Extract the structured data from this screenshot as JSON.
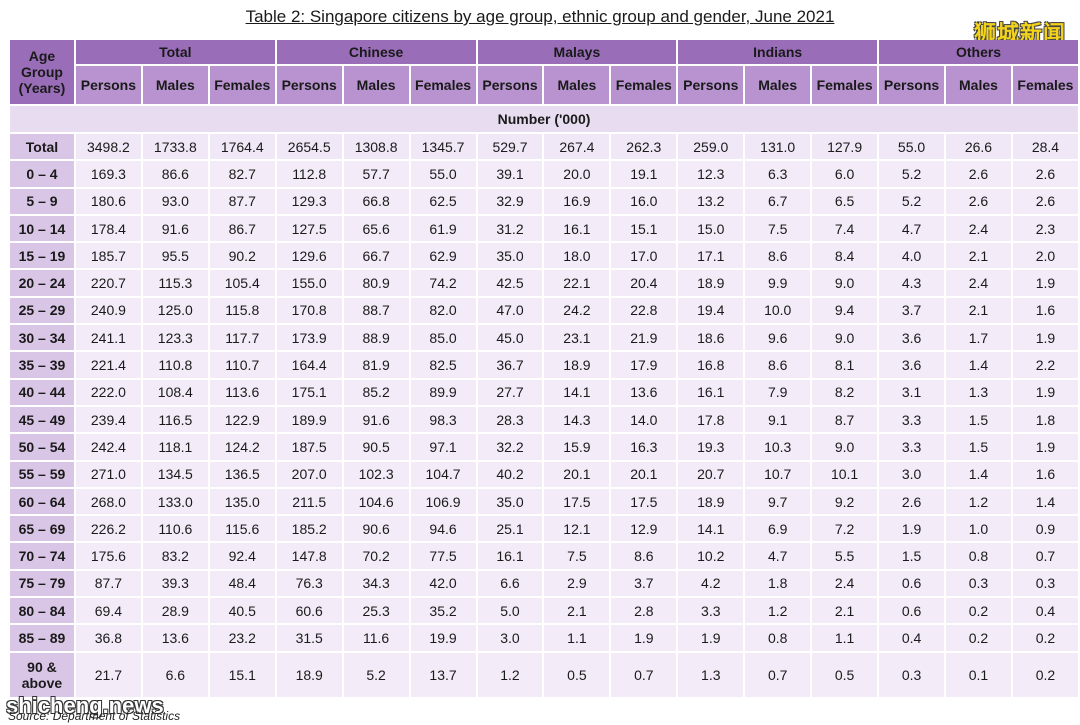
{
  "title": "Table 2: Singapore citizens by age group, ethnic group and gender, June 2021",
  "watermark_top": "狮城新闻",
  "watermark_bottom": "shicheng.news",
  "source": "Source: Department of Statistics",
  "header": {
    "age_group": "Age Group (Years)",
    "groups": [
      "Total",
      "Chinese",
      "Malays",
      "Indians",
      "Others"
    ],
    "sub": [
      "Persons",
      "Males",
      "Females"
    ],
    "unit": "Number ('000)"
  },
  "rows": [
    {
      "age": "Total",
      "values": [
        "3498.2",
        "1733.8",
        "1764.4",
        "2654.5",
        "1308.8",
        "1345.7",
        "529.7",
        "267.4",
        "262.3",
        "259.0",
        "131.0",
        "127.9",
        "55.0",
        "26.6",
        "28.4"
      ]
    },
    {
      "age": "0 – 4",
      "values": [
        "169.3",
        "86.6",
        "82.7",
        "112.8",
        "57.7",
        "55.0",
        "39.1",
        "20.0",
        "19.1",
        "12.3",
        "6.3",
        "6.0",
        "5.2",
        "2.6",
        "2.6"
      ]
    },
    {
      "age": "5 – 9",
      "values": [
        "180.6",
        "93.0",
        "87.7",
        "129.3",
        "66.8",
        "62.5",
        "32.9",
        "16.9",
        "16.0",
        "13.2",
        "6.7",
        "6.5",
        "5.2",
        "2.6",
        "2.6"
      ]
    },
    {
      "age": "10 – 14",
      "values": [
        "178.4",
        "91.6",
        "86.7",
        "127.5",
        "65.6",
        "61.9",
        "31.2",
        "16.1",
        "15.1",
        "15.0",
        "7.5",
        "7.4",
        "4.7",
        "2.4",
        "2.3"
      ]
    },
    {
      "age": "15 – 19",
      "values": [
        "185.7",
        "95.5",
        "90.2",
        "129.6",
        "66.7",
        "62.9",
        "35.0",
        "18.0",
        "17.0",
        "17.1",
        "8.6",
        "8.4",
        "4.0",
        "2.1",
        "2.0"
      ]
    },
    {
      "age": "20 – 24",
      "values": [
        "220.7",
        "115.3",
        "105.4",
        "155.0",
        "80.9",
        "74.2",
        "42.5",
        "22.1",
        "20.4",
        "18.9",
        "9.9",
        "9.0",
        "4.3",
        "2.4",
        "1.9"
      ]
    },
    {
      "age": "25 – 29",
      "values": [
        "240.9",
        "125.0",
        "115.8",
        "170.8",
        "88.7",
        "82.0",
        "47.0",
        "24.2",
        "22.8",
        "19.4",
        "10.0",
        "9.4",
        "3.7",
        "2.1",
        "1.6"
      ]
    },
    {
      "age": "30 – 34",
      "values": [
        "241.1",
        "123.3",
        "117.7",
        "173.9",
        "88.9",
        "85.0",
        "45.0",
        "23.1",
        "21.9",
        "18.6",
        "9.6",
        "9.0",
        "3.6",
        "1.7",
        "1.9"
      ]
    },
    {
      "age": "35 – 39",
      "values": [
        "221.4",
        "110.8",
        "110.7",
        "164.4",
        "81.9",
        "82.5",
        "36.7",
        "18.9",
        "17.9",
        "16.8",
        "8.6",
        "8.1",
        "3.6",
        "1.4",
        "2.2"
      ]
    },
    {
      "age": "40 – 44",
      "values": [
        "222.0",
        "108.4",
        "113.6",
        "175.1",
        "85.2",
        "89.9",
        "27.7",
        "14.1",
        "13.6",
        "16.1",
        "7.9",
        "8.2",
        "3.1",
        "1.3",
        "1.9"
      ]
    },
    {
      "age": "45 – 49",
      "values": [
        "239.4",
        "116.5",
        "122.9",
        "189.9",
        "91.6",
        "98.3",
        "28.3",
        "14.3",
        "14.0",
        "17.8",
        "9.1",
        "8.7",
        "3.3",
        "1.5",
        "1.8"
      ]
    },
    {
      "age": "50 – 54",
      "values": [
        "242.4",
        "118.1",
        "124.2",
        "187.5",
        "90.5",
        "97.1",
        "32.2",
        "15.9",
        "16.3",
        "19.3",
        "10.3",
        "9.0",
        "3.3",
        "1.5",
        "1.9"
      ]
    },
    {
      "age": "55 – 59",
      "values": [
        "271.0",
        "134.5",
        "136.5",
        "207.0",
        "102.3",
        "104.7",
        "40.2",
        "20.1",
        "20.1",
        "20.7",
        "10.7",
        "10.1",
        "3.0",
        "1.4",
        "1.6"
      ]
    },
    {
      "age": "60 – 64",
      "values": [
        "268.0",
        "133.0",
        "135.0",
        "211.5",
        "104.6",
        "106.9",
        "35.0",
        "17.5",
        "17.5",
        "18.9",
        "9.7",
        "9.2",
        "2.6",
        "1.2",
        "1.4"
      ]
    },
    {
      "age": "65 – 69",
      "values": [
        "226.2",
        "110.6",
        "115.6",
        "185.2",
        "90.6",
        "94.6",
        "25.1",
        "12.1",
        "12.9",
        "14.1",
        "6.9",
        "7.2",
        "1.9",
        "1.0",
        "0.9"
      ]
    },
    {
      "age": "70 – 74",
      "values": [
        "175.6",
        "83.2",
        "92.4",
        "147.8",
        "70.2",
        "77.5",
        "16.1",
        "7.5",
        "8.6",
        "10.2",
        "4.7",
        "5.5",
        "1.5",
        "0.8",
        "0.7"
      ]
    },
    {
      "age": "75 – 79",
      "values": [
        "87.7",
        "39.3",
        "48.4",
        "76.3",
        "34.3",
        "42.0",
        "6.6",
        "2.9",
        "3.7",
        "4.2",
        "1.8",
        "2.4",
        "0.6",
        "0.3",
        "0.3"
      ]
    },
    {
      "age": "80 – 84",
      "values": [
        "69.4",
        "28.9",
        "40.5",
        "60.6",
        "25.3",
        "35.2",
        "5.0",
        "2.1",
        "2.8",
        "3.3",
        "1.2",
        "2.1",
        "0.6",
        "0.2",
        "0.4"
      ]
    },
    {
      "age": "85 – 89",
      "values": [
        "36.8",
        "13.6",
        "23.2",
        "31.5",
        "11.6",
        "19.9",
        "3.0",
        "1.1",
        "1.9",
        "1.9",
        "0.8",
        "1.1",
        "0.4",
        "0.2",
        "0.2"
      ]
    },
    {
      "age": "90 & above",
      "values": [
        "21.7",
        "6.6",
        "15.1",
        "18.9",
        "5.2",
        "13.7",
        "1.2",
        "0.5",
        "0.7",
        "1.3",
        "0.7",
        "0.5",
        "0.3",
        "0.1",
        "0.2"
      ]
    }
  ]
}
